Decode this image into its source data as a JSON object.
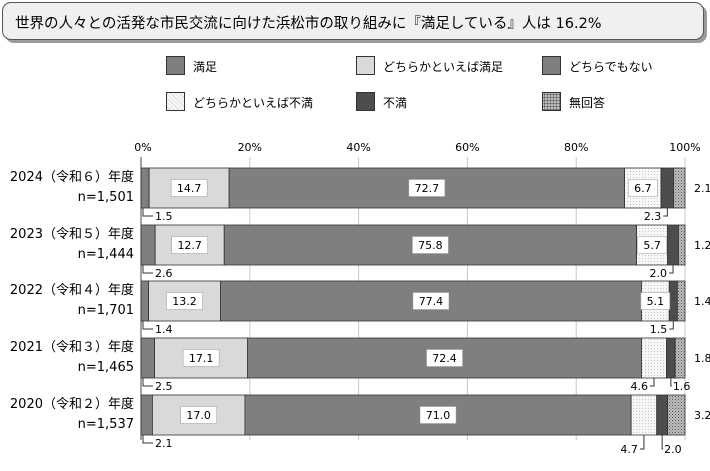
{
  "title": "世界の人々との活発な市民交流に向けた浜松市の取り組みに『満足している』人は 16.2%",
  "colors": {
    "manzoku": "#7f7f7f",
    "dochirakato_manzoku": "#d9d9d9",
    "dochirademo": "#8c8c8c",
    "dochirakato_fuman": "#f4f4f4",
    "fuman": "#4d4d4d",
    "mukaito": "#a6a6a6"
  },
  "legend": [
    {
      "label": "満足",
      "color": "#7f7f7f"
    },
    {
      "label": "どちらかといえば満足",
      "color": "#d9d9d9"
    },
    {
      "label": "どちらでもない",
      "color": "#8c8c8c"
    },
    {
      "label": "どちらかといえば不満",
      "color": "#f4f4f4"
    },
    {
      "label": "不満",
      "color": "#4d4d4d"
    },
    {
      "label": "無回答",
      "color": "#a6a6a6"
    }
  ],
  "chart_data": {
    "type": "bar",
    "orientation": "horizontal",
    "stacked": true,
    "xlim": [
      0,
      100
    ],
    "x_ticks": [
      "0%",
      "20%",
      "40%",
      "60%",
      "80%",
      "100%"
    ],
    "grid": true,
    "categories": [
      {
        "year": "2024（令和６）年度",
        "n": "n=1,501"
      },
      {
        "year": "2023（令和５）年度",
        "n": "n=1,444"
      },
      {
        "year": "2022（令和４）年度",
        "n": "n=1,701"
      },
      {
        "year": "2021（令和３）年度",
        "n": "n=1,465"
      },
      {
        "year": "2020（令和２）年度",
        "n": "n=1,537"
      }
    ],
    "series": [
      {
        "name": "満足",
        "values": [
          1.5,
          2.6,
          1.4,
          2.5,
          2.1
        ]
      },
      {
        "name": "どちらかといえば満足",
        "values": [
          14.7,
          12.7,
          13.2,
          17.1,
          17.0
        ]
      },
      {
        "name": "どちらでもない",
        "values": [
          72.7,
          75.8,
          77.4,
          72.4,
          71.0
        ]
      },
      {
        "name": "どちらかといえば不満",
        "values": [
          6.7,
          5.7,
          5.1,
          4.6,
          4.7
        ]
      },
      {
        "name": "不満",
        "values": [
          2.3,
          2.0,
          1.5,
          1.6,
          2.0
        ]
      },
      {
        "name": "無回答",
        "values": [
          2.1,
          1.2,
          1.4,
          1.8,
          3.2
        ]
      }
    ]
  }
}
